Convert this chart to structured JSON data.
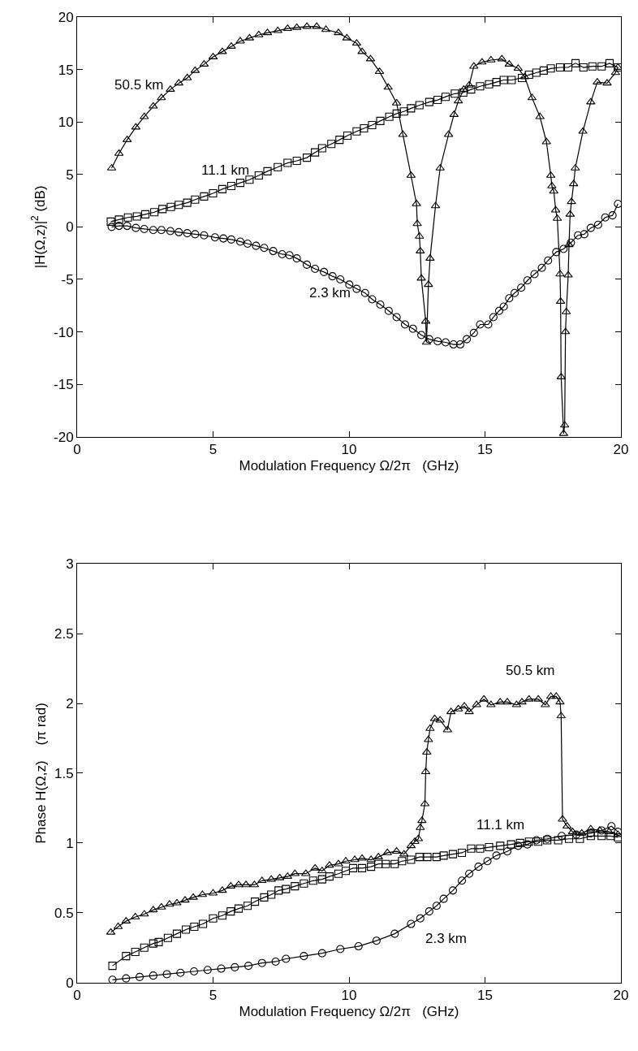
{
  "chart_data": [
    {
      "type": "line",
      "xlabel": "Modulation Frequency Ω/2π   (GHz)",
      "ylabel": "|H(Ω,z)|$^{2}$ (dB)",
      "xlim": [
        0,
        20
      ],
      "ylim": [
        -20,
        20
      ],
      "xticks": [
        0,
        5,
        10,
        15,
        20
      ],
      "yticks": [
        -20,
        -15,
        -10,
        -5,
        0,
        5,
        10,
        15,
        20
      ],
      "legend": false,
      "line_style": "solid",
      "series": [
        {
          "name": "50.5 km",
          "color": "#000000",
          "marker": "triangle",
          "x": [
            1.27,
            1.54,
            1.84,
            2.16,
            2.47,
            2.8,
            3.1,
            3.43,
            3.74,
            4.05,
            4.34,
            4.67,
            5.0,
            5.34,
            5.67,
            6.0,
            6.34,
            6.68,
            7.0,
            7.38,
            7.74,
            8.08,
            8.45,
            8.81,
            9.15,
            9.61,
            9.92,
            10.28,
            10.48,
            10.79,
            11.12,
            11.44,
            11.75,
            11.98,
            12.28,
            12.48,
            12.51,
            12.59,
            12.62,
            12.66,
            12.82,
            12.85,
            12.92,
            12.98,
            13.18,
            13.35,
            13.66,
            13.86,
            14.02,
            14.22,
            14.42,
            14.59,
            14.89,
            15.22,
            15.62,
            15.89,
            16.22,
            16.46,
            16.73,
            17.02,
            17.26,
            17.42,
            17.46,
            17.53,
            17.6,
            17.66,
            17.76,
            17.78,
            17.8,
            17.89,
            17.93,
            17.96,
            17.99,
            18.06,
            18.09,
            18.13,
            18.18,
            18.26,
            18.32,
            18.6,
            18.89,
            19.13,
            19.49,
            19.8,
            19.89
          ],
          "values": [
            5.6,
            7.0,
            8.3,
            9.5,
            10.5,
            11.5,
            12.3,
            13.1,
            13.7,
            14.2,
            14.9,
            15.5,
            16.2,
            16.7,
            17.2,
            17.7,
            18.0,
            18.3,
            18.5,
            18.7,
            18.9,
            19.0,
            19.1,
            19.1,
            18.8,
            18.5,
            18.0,
            17.5,
            16.7,
            16.0,
            14.8,
            13.3,
            11.8,
            8.8,
            4.9,
            2.2,
            0.3,
            -0.9,
            -2.3,
            -4.9,
            -9.0,
            -11.0,
            -5.5,
            -3.0,
            2.0,
            5.6,
            8.8,
            10.7,
            12.0,
            13.1,
            13.5,
            15.3,
            15.7,
            15.9,
            16.0,
            15.5,
            15.1,
            14.3,
            12.3,
            10.5,
            8.1,
            4.9,
            3.9,
            3.4,
            1.6,
            0.8,
            -4.5,
            -7.1,
            -14.3,
            -19.7,
            -18.9,
            -10.0,
            -8.1,
            -4.6,
            -1.7,
            1.2,
            2.4,
            4.1,
            5.6,
            9.1,
            11.9,
            13.8,
            13.7,
            14.7,
            15.2
          ]
        },
        {
          "name": "11.1 km",
          "color": "#000000",
          "marker": "square",
          "x": [
            1.24,
            1.54,
            1.87,
            2.2,
            2.51,
            2.84,
            3.14,
            3.45,
            3.74,
            4.05,
            4.34,
            4.67,
            5.0,
            5.34,
            5.67,
            6.0,
            6.34,
            6.68,
            7.0,
            7.38,
            7.74,
            8.08,
            8.45,
            8.75,
            9.01,
            9.35,
            9.65,
            9.94,
            10.28,
            10.55,
            10.85,
            11.15,
            11.48,
            11.75,
            12.02,
            12.28,
            12.59,
            12.95,
            13.26,
            13.55,
            13.89,
            14.2,
            14.49,
            14.82,
            15.15,
            15.42,
            15.69,
            15.98,
            16.36,
            16.62,
            16.89,
            17.16,
            17.42,
            17.76,
            18.06,
            18.33,
            18.62,
            18.95,
            19.29,
            19.58,
            19.89
          ],
          "values": [
            0.5,
            0.7,
            0.9,
            1.0,
            1.2,
            1.4,
            1.7,
            1.9,
            2.1,
            2.3,
            2.6,
            2.9,
            3.2,
            3.6,
            3.9,
            4.2,
            4.5,
            4.9,
            5.3,
            5.7,
            6.1,
            6.3,
            6.6,
            7.1,
            7.5,
            7.9,
            8.3,
            8.7,
            9.1,
            9.4,
            9.7,
            10.1,
            10.5,
            10.8,
            11.0,
            11.3,
            11.6,
            11.9,
            12.1,
            12.4,
            12.7,
            12.8,
            13.1,
            13.4,
            13.6,
            13.8,
            14.0,
            14.0,
            14.2,
            14.5,
            14.7,
            14.9,
            15.1,
            15.2,
            15.2,
            15.6,
            15.2,
            15.3,
            15.3,
            15.6,
            15.2
          ]
        },
        {
          "name": "2.3 km",
          "color": "#000000",
          "marker": "circle",
          "x": [
            1.27,
            1.54,
            1.84,
            2.16,
            2.47,
            2.8,
            3.1,
            3.43,
            3.74,
            4.05,
            4.34,
            4.67,
            5.07,
            5.38,
            5.67,
            6.0,
            6.27,
            6.58,
            6.88,
            7.21,
            7.54,
            7.81,
            8.08,
            8.45,
            8.75,
            9.08,
            9.39,
            9.68,
            10.01,
            10.28,
            10.59,
            10.85,
            11.15,
            11.46,
            11.75,
            12.06,
            12.35,
            12.66,
            12.95,
            13.26,
            13.55,
            13.84,
            14.09,
            14.33,
            14.59,
            14.82,
            15.12,
            15.31,
            15.52,
            15.69,
            15.89,
            16.09,
            16.33,
            16.56,
            16.82,
            17.09,
            17.32,
            17.62,
            17.89,
            18.16,
            18.42,
            18.65,
            18.89,
            19.16,
            19.42,
            19.69,
            19.89
          ],
          "values": [
            0.0,
            0.1,
            0.1,
            -0.1,
            -0.2,
            -0.3,
            -0.3,
            -0.4,
            -0.5,
            -0.6,
            -0.7,
            -0.8,
            -1.0,
            -1.1,
            -1.2,
            -1.4,
            -1.6,
            -1.8,
            -2.0,
            -2.3,
            -2.6,
            -2.7,
            -3.0,
            -3.6,
            -4.0,
            -4.3,
            -4.7,
            -5.0,
            -5.5,
            -5.9,
            -6.3,
            -6.9,
            -7.4,
            -8.0,
            -8.6,
            -9.3,
            -9.7,
            -10.3,
            -10.7,
            -10.9,
            -11.0,
            -11.2,
            -11.2,
            -10.7,
            -10.1,
            -9.3,
            -9.3,
            -8.6,
            -8.0,
            -7.6,
            -6.8,
            -6.3,
            -5.8,
            -5.1,
            -4.5,
            -3.9,
            -3.2,
            -2.4,
            -2.1,
            -1.5,
            -0.8,
            -0.7,
            -0.1,
            0.2,
            0.9,
            1.1,
            2.2
          ]
        }
      ]
    },
    {
      "type": "line",
      "xlabel": "Modulation Frequency Ω/2π   (GHz)",
      "ylabel": "Phase H(Ω,z)    (π rad)",
      "xlim": [
        0,
        20
      ],
      "ylim": [
        0,
        3
      ],
      "xticks": [
        0,
        5,
        10,
        15,
        20
      ],
      "yticks": [
        0,
        0.5,
        1,
        1.5,
        2,
        2.5,
        3
      ],
      "legend": false,
      "line_style": "solid",
      "series": [
        {
          "name": "50.5 km",
          "color": "#000000",
          "marker": "triangle",
          "x": [
            1.24,
            1.51,
            1.8,
            2.14,
            2.47,
            2.8,
            3.1,
            3.4,
            3.67,
            3.97,
            4.27,
            4.61,
            5.0,
            5.34,
            5.65,
            5.94,
            6.21,
            6.52,
            6.8,
            7.14,
            7.45,
            7.74,
            8.01,
            8.41,
            8.75,
            9.01,
            9.28,
            9.61,
            9.88,
            10.21,
            10.48,
            10.81,
            11.08,
            11.41,
            11.75,
            12.02,
            12.28,
            12.42,
            12.55,
            12.62,
            12.68,
            12.79,
            12.82,
            12.86,
            12.92,
            12.98,
            13.15,
            13.35,
            13.62,
            13.75,
            14.02,
            14.24,
            14.42,
            14.69,
            14.96,
            15.22,
            15.56,
            15.82,
            16.16,
            16.36,
            16.62,
            16.96,
            17.22,
            17.42,
            17.62,
            17.76,
            17.8,
            17.85,
            18.02,
            18.22,
            18.56,
            18.89,
            19.22,
            19.56,
            19.89
          ],
          "values": [
            0.36,
            0.4,
            0.44,
            0.47,
            0.49,
            0.52,
            0.54,
            0.56,
            0.57,
            0.59,
            0.61,
            0.63,
            0.64,
            0.66,
            0.69,
            0.7,
            0.7,
            0.7,
            0.73,
            0.74,
            0.75,
            0.76,
            0.78,
            0.78,
            0.82,
            0.8,
            0.84,
            0.85,
            0.87,
            0.88,
            0.89,
            0.88,
            0.9,
            0.93,
            0.94,
            0.92,
            0.98,
            1.01,
            1.03,
            1.11,
            1.16,
            1.28,
            1.51,
            1.65,
            1.74,
            1.82,
            1.89,
            1.88,
            1.81,
            1.94,
            1.96,
            1.98,
            1.94,
            1.99,
            2.03,
            1.99,
            2.01,
            2.01,
            1.99,
            2.01,
            2.03,
            2.03,
            1.99,
            2.05,
            2.05,
            2.01,
            1.91,
            1.17,
            1.12,
            1.08,
            1.07,
            1.1,
            1.09,
            1.08,
            1.06
          ]
        },
        {
          "name": "11.1 km",
          "color": "#000000",
          "marker": "square",
          "x": [
            1.3,
            1.8,
            2.14,
            2.47,
            2.8,
            3.0,
            3.34,
            3.67,
            4.0,
            4.31,
            4.63,
            5.0,
            5.34,
            5.65,
            5.94,
            6.27,
            6.54,
            6.88,
            7.14,
            7.41,
            7.68,
            8.01,
            8.34,
            8.68,
            9.01,
            9.28,
            9.61,
            9.88,
            10.15,
            10.48,
            10.81,
            11.08,
            11.35,
            11.68,
            11.95,
            12.28,
            12.59,
            12.88,
            13.22,
            13.48,
            13.82,
            14.15,
            14.49,
            14.82,
            15.15,
            15.56,
            15.96,
            16.29,
            16.62,
            16.96,
            17.29,
            17.69,
            18.09,
            18.49,
            18.89,
            19.29,
            19.62,
            19.89
          ],
          "values": [
            0.12,
            0.19,
            0.22,
            0.25,
            0.28,
            0.29,
            0.32,
            0.35,
            0.38,
            0.4,
            0.42,
            0.46,
            0.48,
            0.51,
            0.53,
            0.55,
            0.58,
            0.61,
            0.63,
            0.66,
            0.67,
            0.69,
            0.71,
            0.73,
            0.74,
            0.76,
            0.78,
            0.8,
            0.82,
            0.82,
            0.83,
            0.85,
            0.85,
            0.85,
            0.87,
            0.88,
            0.9,
            0.9,
            0.9,
            0.91,
            0.92,
            0.93,
            0.96,
            0.96,
            0.97,
            0.98,
            0.99,
            1.0,
            1.01,
            1.01,
            1.02,
            1.02,
            1.03,
            1.03,
            1.05,
            1.05,
            1.05,
            1.04
          ]
        },
        {
          "name": "2.3 km",
          "color": "#000000",
          "marker": "circle",
          "x": [
            1.3,
            1.8,
            2.3,
            2.8,
            3.3,
            3.8,
            4.3,
            4.8,
            5.3,
            5.8,
            6.3,
            6.8,
            7.3,
            7.68,
            8.34,
            9.01,
            9.68,
            10.35,
            11.01,
            11.68,
            12.28,
            12.62,
            12.95,
            13.22,
            13.48,
            13.82,
            14.15,
            14.42,
            14.76,
            15.09,
            15.42,
            15.82,
            16.22,
            16.56,
            16.89,
            17.29,
            17.82,
            18.36,
            18.89,
            19.29,
            19.65,
            19.89
          ],
          "values": [
            0.02,
            0.03,
            0.04,
            0.05,
            0.06,
            0.07,
            0.08,
            0.09,
            0.1,
            0.11,
            0.12,
            0.14,
            0.15,
            0.17,
            0.19,
            0.21,
            0.24,
            0.26,
            0.3,
            0.35,
            0.42,
            0.46,
            0.51,
            0.55,
            0.6,
            0.66,
            0.73,
            0.78,
            0.83,
            0.87,
            0.91,
            0.94,
            0.98,
            0.99,
            1.02,
            1.03,
            1.05,
            1.06,
            1.07,
            1.09,
            1.12,
            1.08
          ]
        }
      ]
    }
  ]
}
